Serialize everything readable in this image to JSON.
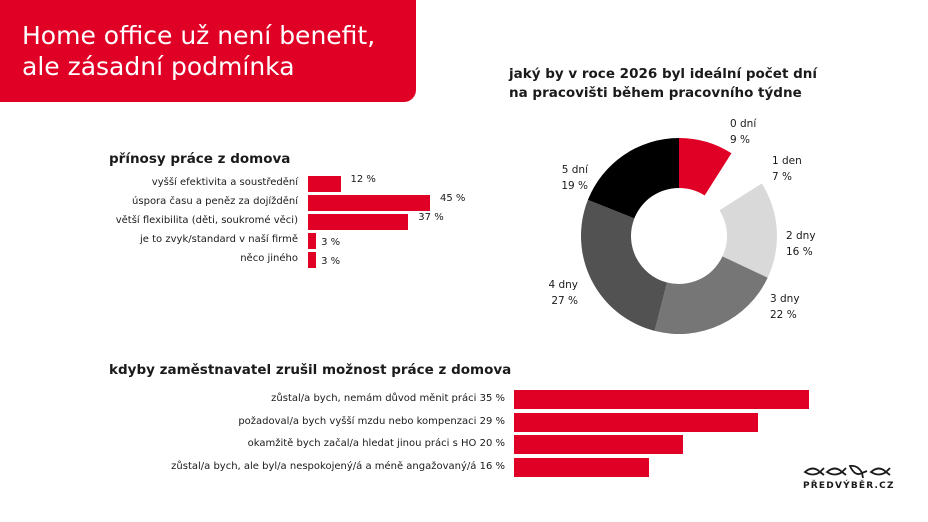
{
  "header": {
    "title_line1": "Home office už není benefit,",
    "title_line2": "ale zásadní  podmínka"
  },
  "brand": {
    "logo_text": "PŘEDVÝBĚR.CZ",
    "accent": "#e10025"
  },
  "chart_data": [
    {
      "type": "bar",
      "orientation": "horizontal",
      "title": "přínosy práce z domova",
      "categories": [
        "vyšší efektivita a soustředění",
        "úspora času a peněz za dojíždění",
        "větší flexibilita (děti, soukromé věci)",
        "je to zvyk/standard v naší firmě",
        "něco jiného"
      ],
      "values": [
        12,
        45,
        37,
        3,
        3
      ],
      "value_labels": [
        "12 %",
        "45 %",
        "37 %",
        "3 %",
        "3 %"
      ],
      "unit": "%",
      "color": "#e10025"
    },
    {
      "type": "pie",
      "donut": true,
      "title": "jaký by v roce 2026 byl ideální počet dní na pracovišti během pracovního týdne",
      "title_line1": "jaký by v roce 2026 byl ideální počet dní",
      "title_line2": "na pracovišti během pracovního týdne",
      "categories": [
        "0 dní",
        "1 den",
        "2 dny",
        "3 dny",
        "4 dny",
        "5 dní"
      ],
      "values": [
        9,
        7,
        16,
        22,
        27,
        19
      ],
      "value_labels": [
        "9 %",
        "7 %",
        "16 %",
        "22 %",
        "27 %",
        "19 %"
      ],
      "colors": [
        "#e10025",
        "#ffffff",
        "#d9d9d9",
        "#767676",
        "#525252",
        "#000000"
      ]
    },
    {
      "type": "bar",
      "orientation": "horizontal",
      "title": "kdyby zaměstnavatel zrušil možnost práce z domova",
      "categories": [
        "zůstal/a bych, nemám důvod měnit práci",
        "požadoval/a bych vyšší mzdu nebo kompenzaci",
        "okamžitě bych začal/a hledat jinou práci s HO",
        "zůstal/a bych, ale byl/a nespokojený/á a méně angažovaný/á"
      ],
      "values": [
        35,
        29,
        20,
        16
      ],
      "labels": [
        "zůstal/a bych, nemám důvod měnit práci 35 %",
        "požadoval/a bych vyšší mzdu nebo kompenzaci 29 %",
        "okamžitě bych začal/a hledat jinou práci s HO 20 %",
        "zůstal/a bych, ale byl/a nespokojený/á a méně angažovaný/á 16 %"
      ],
      "unit": "%",
      "color": "#e10025"
    }
  ]
}
